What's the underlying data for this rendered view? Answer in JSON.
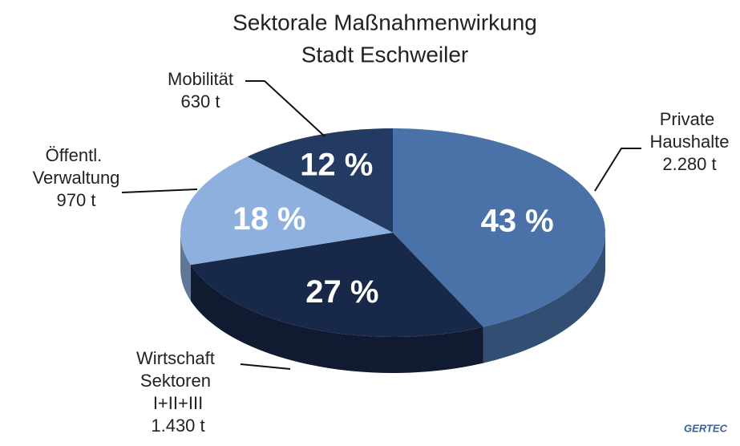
{
  "chart_data": {
    "type": "pie",
    "title": [
      "Sektorale Maßnahmenwirkung",
      "Stadt Eschweiler"
    ],
    "categories": [
      "Private Haushalte",
      "Wirtschaft Sektoren I+II+III",
      "Öffentl. Verwaltung",
      "Mobilität"
    ],
    "values": [
      43,
      27,
      18,
      12
    ],
    "value_labels": [
      "43 %",
      "27 %",
      "18 %",
      "12 %"
    ],
    "amounts": [
      2280,
      1430,
      970,
      630
    ],
    "amount_labels": [
      "2.280 t",
      "1.430 t",
      "970 t",
      "630 t"
    ],
    "colors": [
      "#4a72a8",
      "#172848",
      "#8db0de",
      "#233a62"
    ],
    "logo": "GERTEC"
  }
}
